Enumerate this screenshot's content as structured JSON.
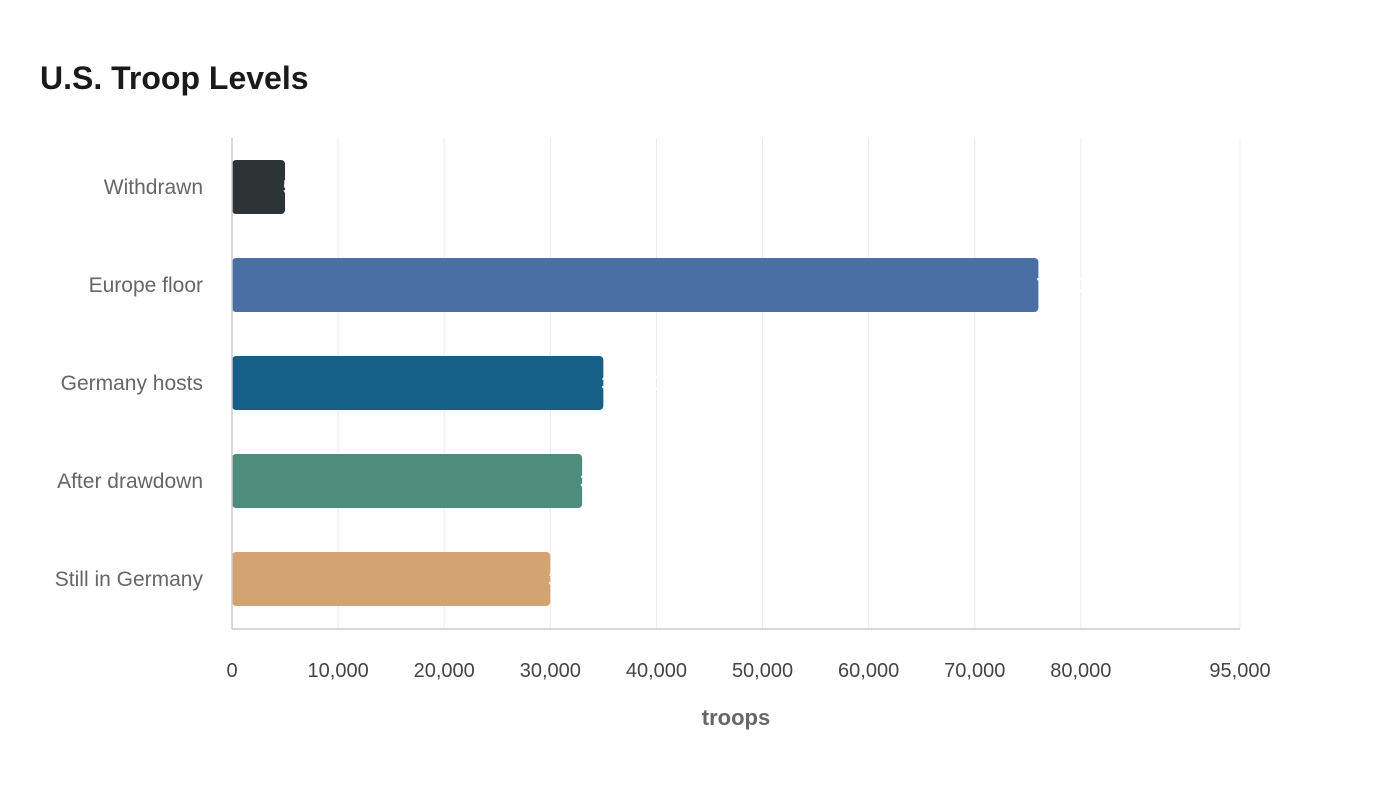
{
  "chart_data": {
    "type": "bar",
    "orientation": "horizontal",
    "title": "U.S. Troop Levels",
    "xlabel": "troops",
    "ylabel": "",
    "categories": [
      "Withdrawn",
      "Europe floor",
      "Germany hosts",
      "After drawdown",
      "Still in Germany"
    ],
    "values": [
      5000,
      76000,
      35000,
      33000,
      30000
    ],
    "colors": [
      "#2d3436",
      "#4a6fa5",
      "#166088",
      "#4e8d7c",
      "#d4a373"
    ],
    "xlim": [
      0,
      95000
    ],
    "xticks": [
      0,
      10000,
      20000,
      30000,
      40000,
      50000,
      60000,
      70000,
      80000,
      95000
    ],
    "grid": true,
    "legend": "none"
  }
}
